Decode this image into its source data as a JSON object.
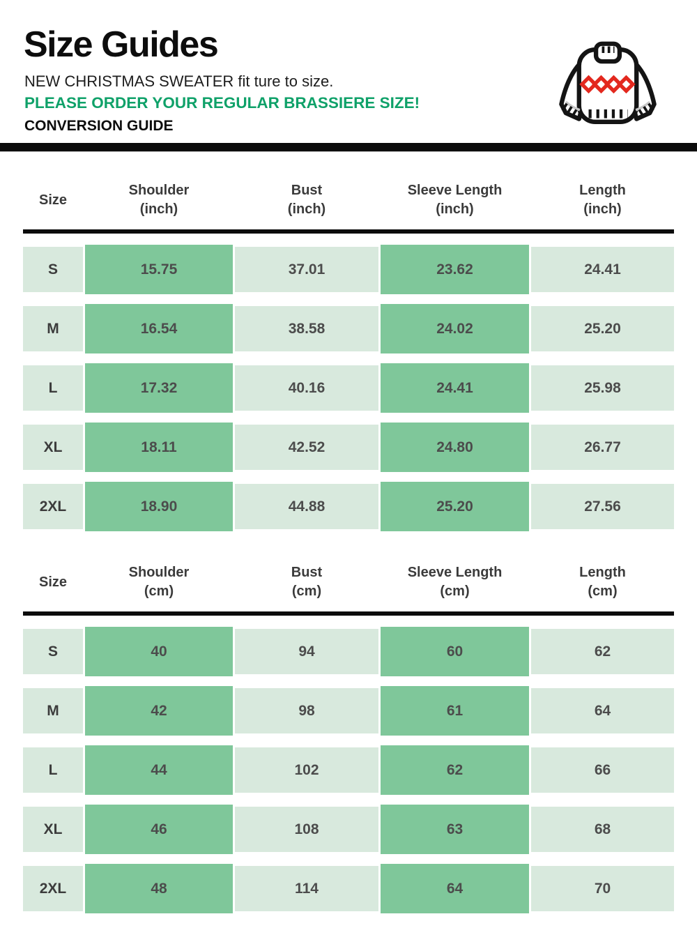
{
  "header": {
    "title": "Size Guides",
    "subtitle": "NEW CHRISTMAS SWEATER fit ture to size.",
    "notice": "PLEASE ORDER YOUR REGULAR BRASSIERE SIZE!",
    "conversion": "CONVERSION GUIDE"
  },
  "icon": {
    "name": "christmas-sweater-icon"
  },
  "colors": {
    "green_text": "#0fa169",
    "cell_dark_green": "#7fc79a",
    "cell_light_green": "#d8e9dd",
    "bar_black": "#0c0c0c",
    "value_text": "#4c4c4c",
    "diamond_red": "#e3281e",
    "sweater_outline": "#141414"
  },
  "tables": [
    {
      "name": "inch",
      "columns": [
        {
          "name": "Size",
          "unit": ""
        },
        {
          "name": "Shoulder",
          "unit": "(inch)"
        },
        {
          "name": "Bust",
          "unit": "(inch)"
        },
        {
          "name": "Sleeve Length",
          "unit": "(inch)"
        },
        {
          "name": "Length",
          "unit": "(inch)"
        }
      ],
      "rows": [
        [
          "S",
          "15.75",
          "37.01",
          "23.62",
          "24.41"
        ],
        [
          "M",
          "16.54",
          "38.58",
          "24.02",
          "25.20"
        ],
        [
          "L",
          "17.32",
          "40.16",
          "24.41",
          "25.98"
        ],
        [
          "XL",
          "18.11",
          "42.52",
          "24.80",
          "26.77"
        ],
        [
          "2XL",
          "18.90",
          "44.88",
          "25.20",
          "27.56"
        ]
      ]
    },
    {
      "name": "cm",
      "columns": [
        {
          "name": "Size",
          "unit": ""
        },
        {
          "name": "Shoulder",
          "unit": "(cm)"
        },
        {
          "name": "Bust",
          "unit": "(cm)"
        },
        {
          "name": "Sleeve Length",
          "unit": "(cm)"
        },
        {
          "name": "Length",
          "unit": "(cm)"
        }
      ],
      "rows": [
        [
          "S",
          "40",
          "94",
          "60",
          "62"
        ],
        [
          "M",
          "42",
          "98",
          "61",
          "64"
        ],
        [
          "L",
          "44",
          "102",
          "62",
          "66"
        ],
        [
          "XL",
          "46",
          "108",
          "63",
          "68"
        ],
        [
          "2XL",
          "48",
          "114",
          "64",
          "70"
        ]
      ]
    }
  ]
}
